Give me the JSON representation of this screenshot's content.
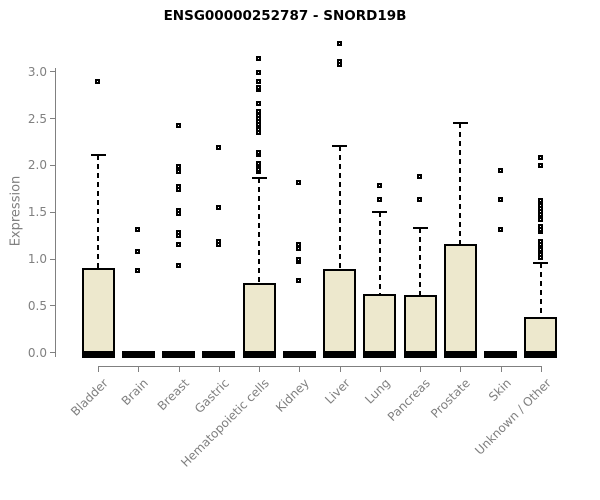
{
  "chart_data": {
    "type": "boxplot",
    "title": "ENSG00000252787 - SNORD19B",
    "xlabel": "",
    "ylabel": "Expression",
    "ylim": [
      0,
      3.35
    ],
    "grid": false,
    "legend": "none",
    "y_tick_values": [
      0,
      0.5,
      1,
      1.5,
      2,
      2.5,
      3
    ],
    "y_tick_labels": [
      "0.0",
      "0.5",
      "1.0",
      "1.5",
      "2.0",
      "2.5",
      "3.0"
    ],
    "categories": [
      "Bladder",
      "Brain",
      "Breast",
      "Gastric",
      "Hematopoietic cells",
      "Kidney",
      "Liver",
      "Lung",
      "Pancreas",
      "Prostate",
      "Skin",
      "Unknown / Other"
    ],
    "series": [
      {
        "name": "Bladder",
        "min": 0,
        "q1": 0,
        "median": 0,
        "q3": 0.9,
        "whisker_high": 2.11,
        "outliers": [
          2.9
        ]
      },
      {
        "name": "Brain",
        "min": 0,
        "q1": 0,
        "median": 0,
        "q3": 0,
        "whisker_high": 0,
        "outliers": [
          0.88,
          1.08,
          1.31
        ]
      },
      {
        "name": "Breast",
        "min": 0,
        "q1": 0,
        "median": 0,
        "q3": 0,
        "whisker_high": 0,
        "outliers": [
          0.93,
          1.15,
          1.25,
          1.28,
          1.49,
          1.52,
          1.74,
          1.77,
          1.93,
          1.99,
          2.43
        ]
      },
      {
        "name": "Gastric",
        "min": 0,
        "q1": 0,
        "median": 0,
        "q3": 0,
        "whisker_high": 0,
        "outliers": [
          1.15,
          1.19,
          1.55,
          2.19
        ]
      },
      {
        "name": "Hematopoietic cells",
        "min": 0,
        "q1": 0,
        "median": 0,
        "q3": 0.74,
        "whisker_high": 1.87,
        "outliers": [
          1.93,
          1.96,
          2.0,
          2.02,
          2.12,
          2.14,
          2.35,
          2.38,
          2.41,
          2.44,
          2.47,
          2.5,
          2.53,
          2.57,
          2.66,
          2.81,
          2.83,
          2.9,
          2.99,
          3.14
        ]
      },
      {
        "name": "Kidney",
        "min": 0,
        "q1": 0,
        "median": 0,
        "q3": 0,
        "whisker_high": 0,
        "outliers": [
          0.77,
          0.97,
          0.99,
          1.11,
          1.15,
          1.82
        ]
      },
      {
        "name": "Liver",
        "min": 0,
        "q1": 0,
        "median": 0,
        "q3": 0.89,
        "whisker_high": 2.21,
        "outliers": [
          3.08,
          3.11,
          3.3
        ]
      },
      {
        "name": "Lung",
        "min": 0,
        "q1": 0,
        "median": 0,
        "q3": 0.63,
        "whisker_high": 1.5,
        "outliers": [
          1.64,
          1.78
        ]
      },
      {
        "name": "Pancreas",
        "min": 0,
        "q1": 0,
        "median": 0,
        "q3": 0.62,
        "whisker_high": 1.33,
        "outliers": [
          1.64,
          1.88
        ]
      },
      {
        "name": "Prostate",
        "min": 0,
        "q1": 0,
        "median": 0,
        "q3": 1.16,
        "whisker_high": 2.45,
        "outliers": []
      },
      {
        "name": "Skin",
        "min": 0,
        "q1": 0,
        "median": 0,
        "q3": 0,
        "whisker_high": 0,
        "outliers": [
          1.31,
          1.64,
          1.95
        ]
      },
      {
        "name": "Unknown / Other",
        "min": 0,
        "q1": 0,
        "median": 0,
        "q3": 0.38,
        "whisker_high": 0.96,
        "outliers": [
          1.02,
          1.05,
          1.1,
          1.13,
          1.16,
          1.19,
          1.29,
          1.32,
          1.35,
          1.42,
          1.45,
          1.48,
          1.51,
          1.54,
          1.57,
          1.6,
          1.63,
          2.0,
          2.08
        ]
      }
    ],
    "colors": {
      "box_fill": "#EDE8CD",
      "box_border": "#000000",
      "median": "#000000",
      "whisker": "#000000",
      "outlier_border": "#000000",
      "outlier_fill": "#ffffff",
      "axis": "#808080",
      "tick_label": "#808080",
      "title": "#000000",
      "background": "#ffffff"
    }
  }
}
